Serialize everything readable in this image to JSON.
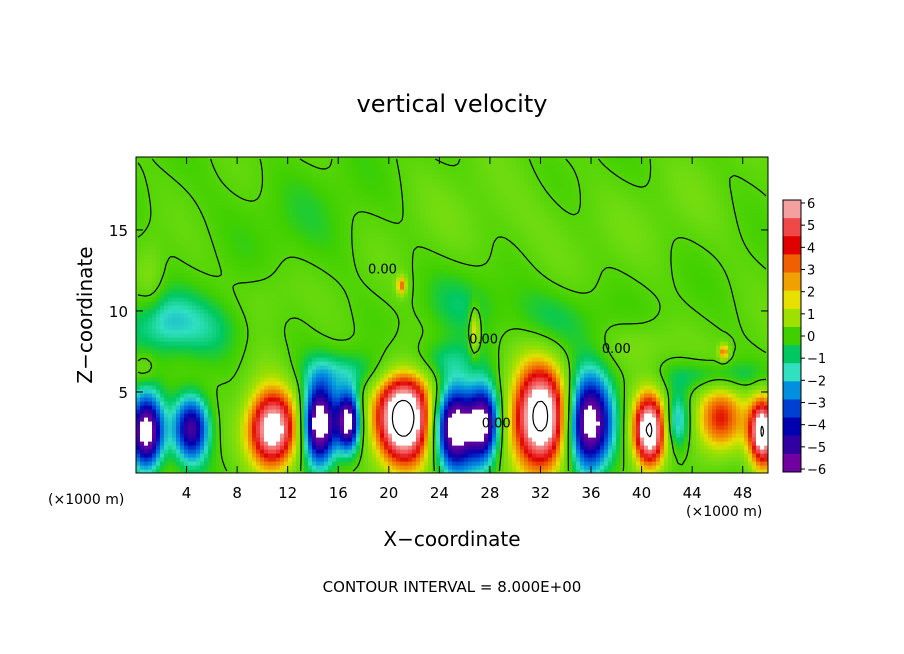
{
  "chart_data": {
    "type": "heatmap",
    "title": "vertical velocity",
    "xlabel": "X−coordinate",
    "ylabel": "Z−coordinate",
    "x_unit": "(×1000 m)",
    "y_unit": "(×1000 m)",
    "footer": "CONTOUR INTERVAL = 8.000E+00",
    "xlim": [
      0,
      50
    ],
    "ylim": [
      0,
      19.5
    ],
    "x_ticks": [
      "4",
      "8",
      "12",
      "16",
      "20",
      "24",
      "28",
      "32",
      "36",
      "40",
      "44",
      "48"
    ],
    "x_tick_values": [
      4,
      8,
      12,
      16,
      20,
      24,
      28,
      32,
      36,
      40,
      44,
      48
    ],
    "y_ticks": [
      "5",
      "10",
      "15"
    ],
    "y_tick_values": [
      5,
      10,
      15
    ],
    "contour_labels": [
      {
        "text": "0.00",
        "x": 19.5,
        "y": 12.3
      },
      {
        "text": "0.00",
        "x": 27.5,
        "y": 8.0
      },
      {
        "text": "0.00",
        "x": 28.5,
        "y": 2.8
      },
      {
        "text": "0.00",
        "x": 38.0,
        "y": 7.4
      }
    ],
    "colorbar": {
      "labels": [
        "6",
        "5",
        "4",
        "3",
        "2",
        "1",
        "0",
        "−1",
        "−2",
        "−3",
        "−4",
        "−5",
        "−6"
      ],
      "colors": [
        "#f4a0a0",
        "#f04848",
        "#e00000",
        "#f06000",
        "#f0a000",
        "#e8e000",
        "#a0e000",
        "#40d000",
        "#00c860",
        "#30e0c0",
        "#0090e0",
        "#0040d0",
        "#0000b0",
        "#3000a0",
        "#7000a0"
      ]
    },
    "features": [
      {
        "cx": 0.8,
        "cz": 2.5,
        "rx": 1.3,
        "rz": 2.2,
        "w": -8
      },
      {
        "cx": 4.4,
        "cz": 2.8,
        "rx": 1.4,
        "rz": 2.0,
        "w": -6
      },
      {
        "cx": 10.8,
        "cz": 2.7,
        "rx": 2.0,
        "rz": 2.5,
        "w": 8
      },
      {
        "cx": 14.5,
        "cz": 3.0,
        "rx": 1.3,
        "rz": 2.5,
        "w": -8
      },
      {
        "cx": 16.8,
        "cz": 3.2,
        "rx": 0.9,
        "rz": 1.8,
        "w": -7
      },
      {
        "cx": 21.2,
        "cz": 3.5,
        "rx": 2.3,
        "rz": 3.0,
        "w": 9
      },
      {
        "cx": 25.2,
        "cz": 2.9,
        "rx": 1.6,
        "rz": 2.6,
        "w": -8
      },
      {
        "cx": 27.5,
        "cz": 3.1,
        "rx": 1.2,
        "rz": 2.3,
        "w": -7
      },
      {
        "cx": 32.0,
        "cz": 3.4,
        "rx": 2.3,
        "rz": 3.3,
        "w": 9
      },
      {
        "cx": 35.8,
        "cz": 3.0,
        "rx": 1.8,
        "rz": 2.9,
        "w": -8
      },
      {
        "cx": 40.6,
        "cz": 2.6,
        "rx": 1.3,
        "rz": 2.3,
        "w": 8
      },
      {
        "cx": 42.8,
        "cz": 3.2,
        "rx": 1.0,
        "rz": 1.8,
        "w": -3
      },
      {
        "cx": 46.2,
        "cz": 3.3,
        "rx": 2.0,
        "rz": 2.2,
        "w": 4.5
      },
      {
        "cx": 49.6,
        "cz": 2.6,
        "rx": 1.1,
        "rz": 2.2,
        "w": 8
      },
      {
        "cx": 0.6,
        "cz": 6.5,
        "rx": 1.0,
        "rz": 1.0,
        "w": 1.2
      },
      {
        "cx": 1.2,
        "cz": 12.0,
        "rx": 1.0,
        "rz": 2.5,
        "w": 0.8
      },
      {
        "cx": 6.0,
        "cz": 9.0,
        "rx": 6.0,
        "rz": 2.0,
        "w": -1.2
      },
      {
        "cx": 2.0,
        "cz": 9.5,
        "rx": 2.5,
        "rz": 1.8,
        "w": -1.5
      },
      {
        "cx": 10.0,
        "cz": 10.0,
        "rx": 2.5,
        "rz": 2.5,
        "w": 1.0
      },
      {
        "cx": 17.0,
        "cz": 6.3,
        "rx": 4.0,
        "rz": 1.3,
        "w": -1.5
      },
      {
        "cx": 24.0,
        "cz": 7.0,
        "rx": 3.0,
        "rz": 1.3,
        "w": -1.5
      },
      {
        "cx": 21.0,
        "cz": 11.6,
        "rx": 0.4,
        "rz": 0.6,
        "w": 3.5
      },
      {
        "cx": 26.8,
        "cz": 8.8,
        "rx": 0.4,
        "rz": 1.4,
        "w": 3.0
      },
      {
        "cx": 26.0,
        "cz": 10.5,
        "rx": 3.0,
        "rz": 2.0,
        "w": -0.9
      },
      {
        "cx": 33.0,
        "cz": 9.5,
        "rx": 4.0,
        "rz": 2.0,
        "w": -1.2
      },
      {
        "cx": 40.0,
        "cz": 8.0,
        "rx": 3.0,
        "rz": 1.5,
        "w": 1.0
      },
      {
        "cx": 46.0,
        "cz": 6.0,
        "rx": 4.0,
        "rz": 1.0,
        "w": -1.8
      },
      {
        "cx": 46.5,
        "cz": 7.5,
        "rx": 0.4,
        "rz": 0.5,
        "w": 3.5
      },
      {
        "cx": 30.0,
        "cz": 15.5,
        "rx": 8.0,
        "rz": 3.0,
        "w": 0.5
      },
      {
        "cx": 45.0,
        "cz": 16.0,
        "rx": 5.0,
        "rz": 3.0,
        "w": 0.3
      },
      {
        "cx": 12.0,
        "cz": 16.0,
        "rx": 7.0,
        "rz": 3.0,
        "w": -0.4
      }
    ]
  }
}
